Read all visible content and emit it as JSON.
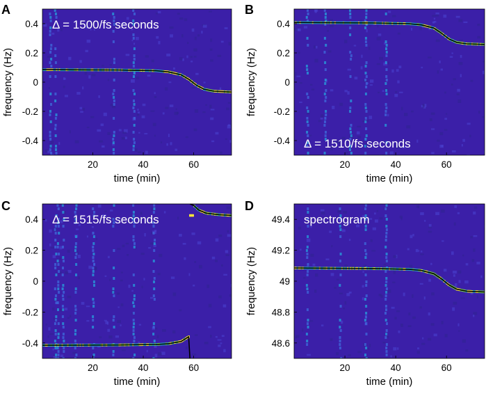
{
  "chart_data": [
    {
      "type": "heatmap",
      "panel_label": "A",
      "annotation": "Δ = 1500/fs seconds",
      "annotation_pos": "top-left",
      "xlabel": "time (min)",
      "ylabel": "frequency (Hz)",
      "xlim": [
        0,
        75
      ],
      "ylim": [
        -0.5,
        0.5
      ],
      "xticks": [
        20,
        40,
        60
      ],
      "yticks": [
        0.4,
        0.2,
        0,
        -0.2,
        -0.4
      ],
      "ytick_labels": [
        "0.4",
        "0.2",
        "0",
        "-0.2",
        "-0.4"
      ],
      "background_color": "#3b1fa8",
      "ridge_color": "#f6e33b",
      "fit_line": {
        "color": "#000000",
        "points": [
          [
            0,
            0.085
          ],
          [
            30,
            0.083
          ],
          [
            45,
            0.078
          ],
          [
            50,
            0.07
          ],
          [
            55,
            0.05
          ],
          [
            58,
            0.02
          ],
          [
            61,
            -0.02
          ],
          [
            64,
            -0.048
          ],
          [
            68,
            -0.062
          ],
          [
            75,
            -0.068
          ]
        ]
      },
      "vertical_streaks_x": [
        3,
        5,
        28,
        36
      ]
    },
    {
      "type": "heatmap",
      "panel_label": "B",
      "annotation": "Δ = 1510/fs seconds",
      "annotation_pos": "bottom-left",
      "xlabel": "time (min)",
      "ylabel": "frequency (Hz)",
      "xlim": [
        0,
        75
      ],
      "ylim": [
        -0.5,
        0.5
      ],
      "xticks": [
        20,
        40,
        60
      ],
      "yticks": [
        0.4,
        0.2,
        0,
        -0.2,
        -0.4
      ],
      "ytick_labels": [
        "0.4",
        "0.2",
        "0",
        "-0.2",
        "-0.4"
      ],
      "background_color": "#3b1fa8",
      "ridge_color": "#f6e33b",
      "fit_line": {
        "color": "#000000",
        "points": [
          [
            0,
            0.408
          ],
          [
            30,
            0.405
          ],
          [
            45,
            0.4
          ],
          [
            50,
            0.392
          ],
          [
            55,
            0.37
          ],
          [
            58,
            0.335
          ],
          [
            61,
            0.295
          ],
          [
            64,
            0.272
          ],
          [
            68,
            0.262
          ],
          [
            75,
            0.258
          ]
        ]
      },
      "vertical_streaks_x": [
        5,
        12,
        22,
        28,
        36
      ]
    },
    {
      "type": "heatmap",
      "panel_label": "C",
      "annotation": "Δ = 1515/fs seconds",
      "annotation_pos": "top-left",
      "xlabel": "time (min)",
      "ylabel": "frequency (Hz)",
      "xlim": [
        0,
        75
      ],
      "ylim": [
        -0.5,
        0.5
      ],
      "xticks": [
        20,
        40,
        60
      ],
      "yticks": [
        0.4,
        0.2,
        0,
        -0.2,
        -0.4
      ],
      "ytick_labels": [
        "0.4",
        "0.2",
        "0",
        "-0.2",
        "-0.4"
      ],
      "background_color": "#3b1fa8",
      "ridge_color": "#f6e33b",
      "fit_line": {
        "color": "#000000",
        "wrap_x": 58.5,
        "points": [
          [
            0,
            -0.415
          ],
          [
            30,
            -0.413
          ],
          [
            45,
            -0.41
          ],
          [
            50,
            -0.405
          ],
          [
            55,
            -0.39
          ],
          [
            58,
            -0.36
          ],
          [
            58.5,
            -0.5
          ],
          [
            58.5,
            0.5
          ],
          [
            60,
            0.49
          ],
          [
            62,
            0.46
          ],
          [
            65,
            0.44
          ],
          [
            70,
            0.43
          ],
          [
            75,
            0.425
          ]
        ]
      },
      "vertical_streaks_x": [
        5,
        6,
        8,
        13,
        20,
        28,
        36,
        44
      ]
    },
    {
      "type": "heatmap",
      "panel_label": "D",
      "annotation": "spectrogram",
      "annotation_pos": "top-left",
      "xlabel": "time (min)",
      "ylabel": "frequency (Hz)",
      "xlim": [
        0,
        75
      ],
      "ylim": [
        48.5,
        49.5
      ],
      "xticks": [
        20,
        40,
        60
      ],
      "yticks": [
        49.4,
        49.2,
        49,
        48.8,
        48.6
      ],
      "ytick_labels": [
        "49.4",
        "49.2",
        "49",
        "48.8",
        "48.6"
      ],
      "background_color": "#3b1fa8",
      "ridge_color": "#f6e33b",
      "fit_line": {
        "color": "#000000",
        "points": [
          [
            0,
            49.085
          ],
          [
            30,
            49.082
          ],
          [
            45,
            49.077
          ],
          [
            50,
            49.07
          ],
          [
            55,
            49.048
          ],
          [
            58,
            49.015
          ],
          [
            61,
            48.975
          ],
          [
            64,
            48.948
          ],
          [
            68,
            48.935
          ],
          [
            75,
            48.93
          ]
        ]
      },
      "vertical_streaks_x": [
        5,
        18,
        28,
        36
      ]
    }
  ]
}
